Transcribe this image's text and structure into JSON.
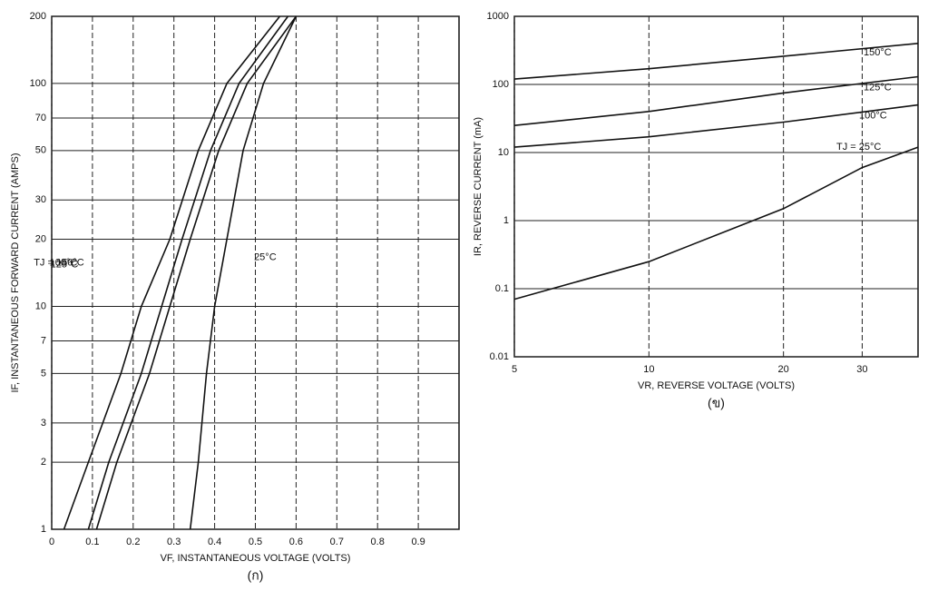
{
  "chart_data": [
    {
      "type": "line",
      "x_label": "VF, INSTANTANEOUS VOLTAGE (VOLTS)",
      "y_label": "IF, INSTANTANEOUS FORWARD CURRENT (AMPS)",
      "caption": "(ก)",
      "xlim": [
        0,
        1
      ],
      "xticks": [
        0,
        0.1,
        0.2,
        0.3,
        0.4,
        0.5,
        0.6,
        0.7,
        0.8,
        0.9
      ],
      "ylim": [
        1,
        200
      ],
      "yticks": [
        1,
        2,
        3,
        5,
        7,
        10,
        20,
        30,
        50,
        70,
        100,
        200
      ],
      "ylog": true,
      "grid": true,
      "color": "#111",
      "series": [
        {
          "name": "TJ = 150°C",
          "x": [
            0.03,
            0.09,
            0.17,
            0.22,
            0.29,
            0.36,
            0.43,
            0.56
          ],
          "values": [
            1,
            2,
            5,
            10,
            20,
            50,
            100,
            200
          ]
        },
        {
          "name": "125°C",
          "x": [
            0.09,
            0.14,
            0.22,
            0.27,
            0.32,
            0.39,
            0.46,
            0.58
          ],
          "values": [
            1,
            2,
            5,
            10,
            20,
            50,
            100,
            200
          ]
        },
        {
          "name": "100°C",
          "x": [
            0.11,
            0.16,
            0.24,
            0.29,
            0.34,
            0.41,
            0.48,
            0.6
          ],
          "values": [
            1,
            2,
            5,
            10,
            20,
            50,
            100,
            200
          ]
        },
        {
          "name": "25°C",
          "x": [
            0.34,
            0.36,
            0.38,
            0.4,
            0.43,
            0.47,
            0.52,
            0.6
          ],
          "values": [
            1,
            2,
            5,
            10,
            20,
            50,
            100,
            200
          ]
        }
      ]
    },
    {
      "type": "line",
      "x_label": "VR, REVERSE VOLTAGE (VOLTS)",
      "y_label": "IR, REVERSE CURRENT (mA)",
      "caption": "(ข)",
      "xlim": [
        5,
        40
      ],
      "xticks": [
        5,
        10,
        20,
        30
      ],
      "xlog": true,
      "ylim": [
        0.01,
        1000
      ],
      "yticks": [
        0.01,
        0.1,
        1,
        10,
        100,
        1000
      ],
      "ylog": true,
      "grid": true,
      "color": "#111",
      "series": [
        {
          "name": "150°C",
          "x": [
            5,
            10,
            20,
            40
          ],
          "values": [
            120,
            170,
            260,
            400
          ]
        },
        {
          "name": "125°C",
          "x": [
            5,
            10,
            20,
            40
          ],
          "values": [
            25,
            40,
            75,
            130
          ]
        },
        {
          "name": "100°C",
          "x": [
            5,
            10,
            20,
            40
          ],
          "values": [
            12,
            17,
            28,
            50
          ]
        },
        {
          "name": "TJ = 25°C",
          "x": [
            5,
            10,
            20,
            30,
            40
          ],
          "values": [
            0.07,
            0.25,
            1.5,
            6,
            12
          ]
        }
      ]
    }
  ]
}
